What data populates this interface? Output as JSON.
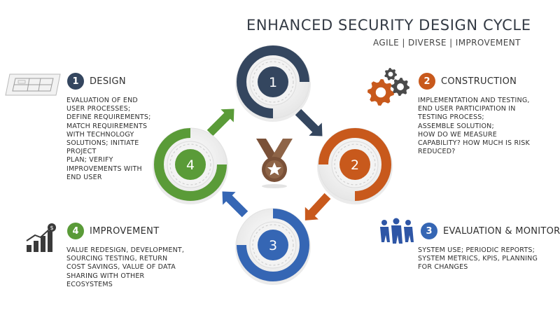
{
  "title": "ENHANCED SECURITY DESIGN CYCLE",
  "subtitle": "AGILE | DIVERSE | IMPROVEMENT",
  "colors": {
    "design": "#34465f",
    "construction": "#c8591c",
    "evaluation": "#3566b4",
    "improvement": "#5a9b38"
  },
  "cycle_nodes": [
    {
      "number": "1",
      "color": "#34465f"
    },
    {
      "number": "2",
      "color": "#c8591c"
    },
    {
      "number": "3",
      "color": "#3566b4"
    },
    {
      "number": "4",
      "color": "#5a9b38"
    }
  ],
  "sections": {
    "design": {
      "number": "1",
      "title": "DESIGN",
      "icon": "blueprint-icon",
      "lines": [
        "EVALUATION OF END",
        "USER PROCESSES;",
        "DEFINE REQUIREMENTS;",
        "MATCH REQUIREMENTS",
        "WITH TECHNOLOGY",
        "SOLUTIONS; INITIATE",
        "PROJECT",
        "PLAN; VERIFY",
        "IMPROVEMENTS WITH",
        "END USER"
      ]
    },
    "construction": {
      "number": "2",
      "title": "CONSTRUCTION",
      "icon": "gears-icon",
      "lines": [
        "IMPLEMENTATION AND TESTING,",
        "END USER PARTICIPATION IN",
        "TESTING PROCESS;",
        "ASSEMBLE SOLUTION;",
        "HOW DO WE MEASURE",
        "CAPABILITY?  HOW MUCH IS RISK",
        "REDUCED?"
      ]
    },
    "evaluation": {
      "number": "3",
      "title": "EVALUATION & MONITORING",
      "icon": "team-icon",
      "lines": [
        "SYSTEM USE; PERIODIC REPORTS;",
        "SYSTEM METRICS, KPIS, PLANNING",
        "FOR CHANGES"
      ]
    },
    "improvement": {
      "number": "4",
      "title": "IMPROVEMENT",
      "icon": "growth-chart-icon",
      "lines": [
        "VALUE REDESIGN, DEVELOPMENT,",
        "SOURCING TESTING, RETURN",
        "COST SAVINGS, VALUE OF DATA",
        "SHARING WITH OTHER",
        "ECOSYSTEMS"
      ]
    }
  },
  "center_icon": "medal-icon"
}
